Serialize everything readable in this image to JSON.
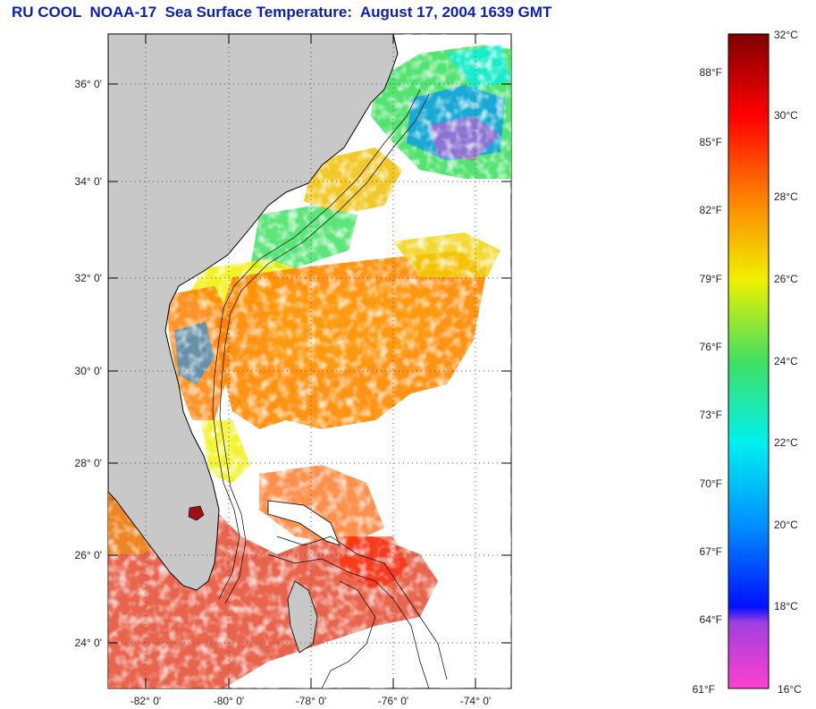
{
  "title": "RU COOL  NOAA-17  Sea Surface Temperature:  August 17, 2004 1639 GMT",
  "map": {
    "lat_labels": [
      "36° 0'",
      "34° 0'",
      "32° 0'",
      "30° 0'",
      "28° 0'",
      "26° 0'",
      "24° 0'"
    ],
    "lat_values": [
      36,
      34,
      32,
      30,
      28,
      26,
      24
    ],
    "lon_labels": [
      "-82° 0'",
      "-80° 0'",
      "-78° 0'",
      "-76° 0'",
      "-74° 0'"
    ],
    "lon_values": [
      -82,
      -80,
      -78,
      -76,
      -74
    ],
    "lat_range": [
      23,
      37.1
    ],
    "lon_range": [
      -83,
      -73
    ]
  },
  "colorbar": {
    "celsius_labels": [
      "32°C",
      "30°C",
      "28°C",
      "26°C",
      "24°C",
      "22°C",
      "20°C",
      "18°C",
      "16°C"
    ],
    "celsius_values": [
      32,
      30,
      28,
      26,
      24,
      22,
      20,
      18,
      16
    ],
    "fahrenheit_labels": [
      "88°F",
      "85°F",
      "82°F",
      "79°F",
      "76°F",
      "73°F",
      "70°F",
      "67°F",
      "64°F",
      "61°F"
    ],
    "fahrenheit_values": [
      88,
      85,
      82,
      79,
      76,
      73,
      70,
      67,
      64,
      61
    ],
    "range_c": [
      16,
      32
    ],
    "colors": {
      "c16": "#ff40d0",
      "c17": "#a040e0",
      "c18": "#0010ff",
      "c20": "#0090ff",
      "c22": "#00f0f0",
      "c24": "#40e060",
      "c26": "#f0f000",
      "c28": "#ff8000",
      "c30": "#ff0000",
      "c32": "#800000"
    }
  }
}
